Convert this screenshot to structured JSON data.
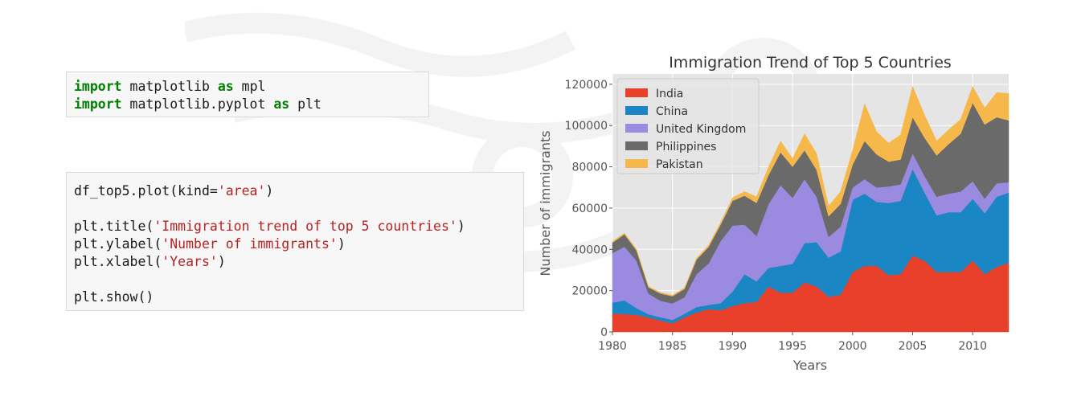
{
  "code_cells": {
    "cell1": {
      "line1": {
        "kw1": "import",
        "mod": " matplotlib ",
        "kw2": "as",
        "alias": " mpl"
      },
      "line2": {
        "kw1": "import",
        "mod": " matplotlib.pyplot ",
        "kw2": "as",
        "alias": " plt"
      }
    },
    "cell2": {
      "line1": {
        "pre": "df_top5.plot(kind=",
        "str": "'area'",
        "post": ")"
      },
      "line3": {
        "pre": "plt.title(",
        "str": "'Immigration trend of top 5 countries'",
        "post": ")"
      },
      "line4": {
        "pre": "plt.ylabel(",
        "str": "'Number of immigrants'",
        "post": ")"
      },
      "line5": {
        "pre": "plt.xlabel(",
        "str": "'Years'",
        "post": ")"
      },
      "line7": {
        "pre": "plt.show()"
      }
    }
  },
  "chart_data": {
    "type": "area",
    "stacked": true,
    "title": "Immigration Trend of Top 5 Countries",
    "xlabel": "Years",
    "ylabel": "Number of immigrants",
    "xlim": [
      1980,
      2013
    ],
    "ylim": [
      0,
      125000
    ],
    "xticks": [
      1980,
      1985,
      1990,
      1995,
      2000,
      2005,
      2010
    ],
    "yticks": [
      0,
      20000,
      40000,
      60000,
      80000,
      100000,
      120000
    ],
    "grid": true,
    "legend_position": "top-left",
    "x": [
      1980,
      1981,
      1982,
      1983,
      1984,
      1985,
      1986,
      1987,
      1988,
      1989,
      1990,
      1991,
      1992,
      1993,
      1994,
      1995,
      1996,
      1997,
      1998,
      1999,
      2000,
      2001,
      2002,
      2003,
      2004,
      2005,
      2006,
      2007,
      2008,
      2009,
      2010,
      2011,
      2012,
      2013
    ],
    "series": [
      {
        "name": "India",
        "color": "#e8402a",
        "values": [
          8900,
          8700,
          8200,
          7000,
          5500,
          4200,
          7000,
          9500,
          11000,
          10500,
          12500,
          14000,
          14500,
          22000,
          19000,
          19000,
          24000,
          22000,
          17000,
          18000,
          29000,
          32000,
          32000,
          27500,
          28000,
          37000,
          34500,
          29000,
          29000,
          29000,
          34500,
          28000,
          31500,
          33500
        ]
      },
      {
        "name": "China",
        "color": "#1b86c4",
        "values": [
          5300,
          6600,
          3300,
          1600,
          1600,
          1600,
          1800,
          2500,
          2100,
          3400,
          7000,
          14000,
          10000,
          9000,
          13000,
          14000,
          19000,
          21500,
          19000,
          21000,
          35000,
          35000,
          31000,
          35000,
          35500,
          42000,
          33000,
          27500,
          29000,
          29000,
          30000,
          29500,
          34000,
          34000
        ]
      },
      {
        "name": "United Kingdom",
        "color": "#9a8ae0",
        "values": [
          24000,
          26000,
          23000,
          10000,
          8000,
          8000,
          8000,
          16000,
          20000,
          30000,
          32000,
          24000,
          22000,
          31000,
          39000,
          32000,
          31000,
          22000,
          10000,
          12000,
          6000,
          7000,
          7000,
          8000,
          8000,
          7500,
          8000,
          9000,
          9000,
          10000,
          8500,
          7000,
          6500,
          5000
        ]
      },
      {
        "name": "Philippines",
        "color": "#6a6a6a",
        "values": [
          5000,
          6000,
          5000,
          3000,
          3500,
          3500,
          4000,
          7000,
          8000,
          8000,
          12000,
          14000,
          16000,
          14000,
          16000,
          15000,
          14000,
          13000,
          10000,
          11000,
          11000,
          18500,
          16000,
          12000,
          12000,
          17500,
          18500,
          20000,
          24000,
          28000,
          38000,
          36000,
          32000,
          30000
        ]
      },
      {
        "name": "Pakistan",
        "color": "#f7b84b",
        "values": [
          700,
          600,
          600,
          500,
          500,
          500,
          600,
          700,
          900,
          1000,
          1500,
          2000,
          3000,
          4000,
          5500,
          4000,
          8000,
          8000,
          5000,
          6000,
          7000,
          18000,
          11000,
          9000,
          12000,
          15000,
          11000,
          7000,
          7000,
          7000,
          8000,
          8000,
          12000,
          13000
        ]
      }
    ]
  }
}
